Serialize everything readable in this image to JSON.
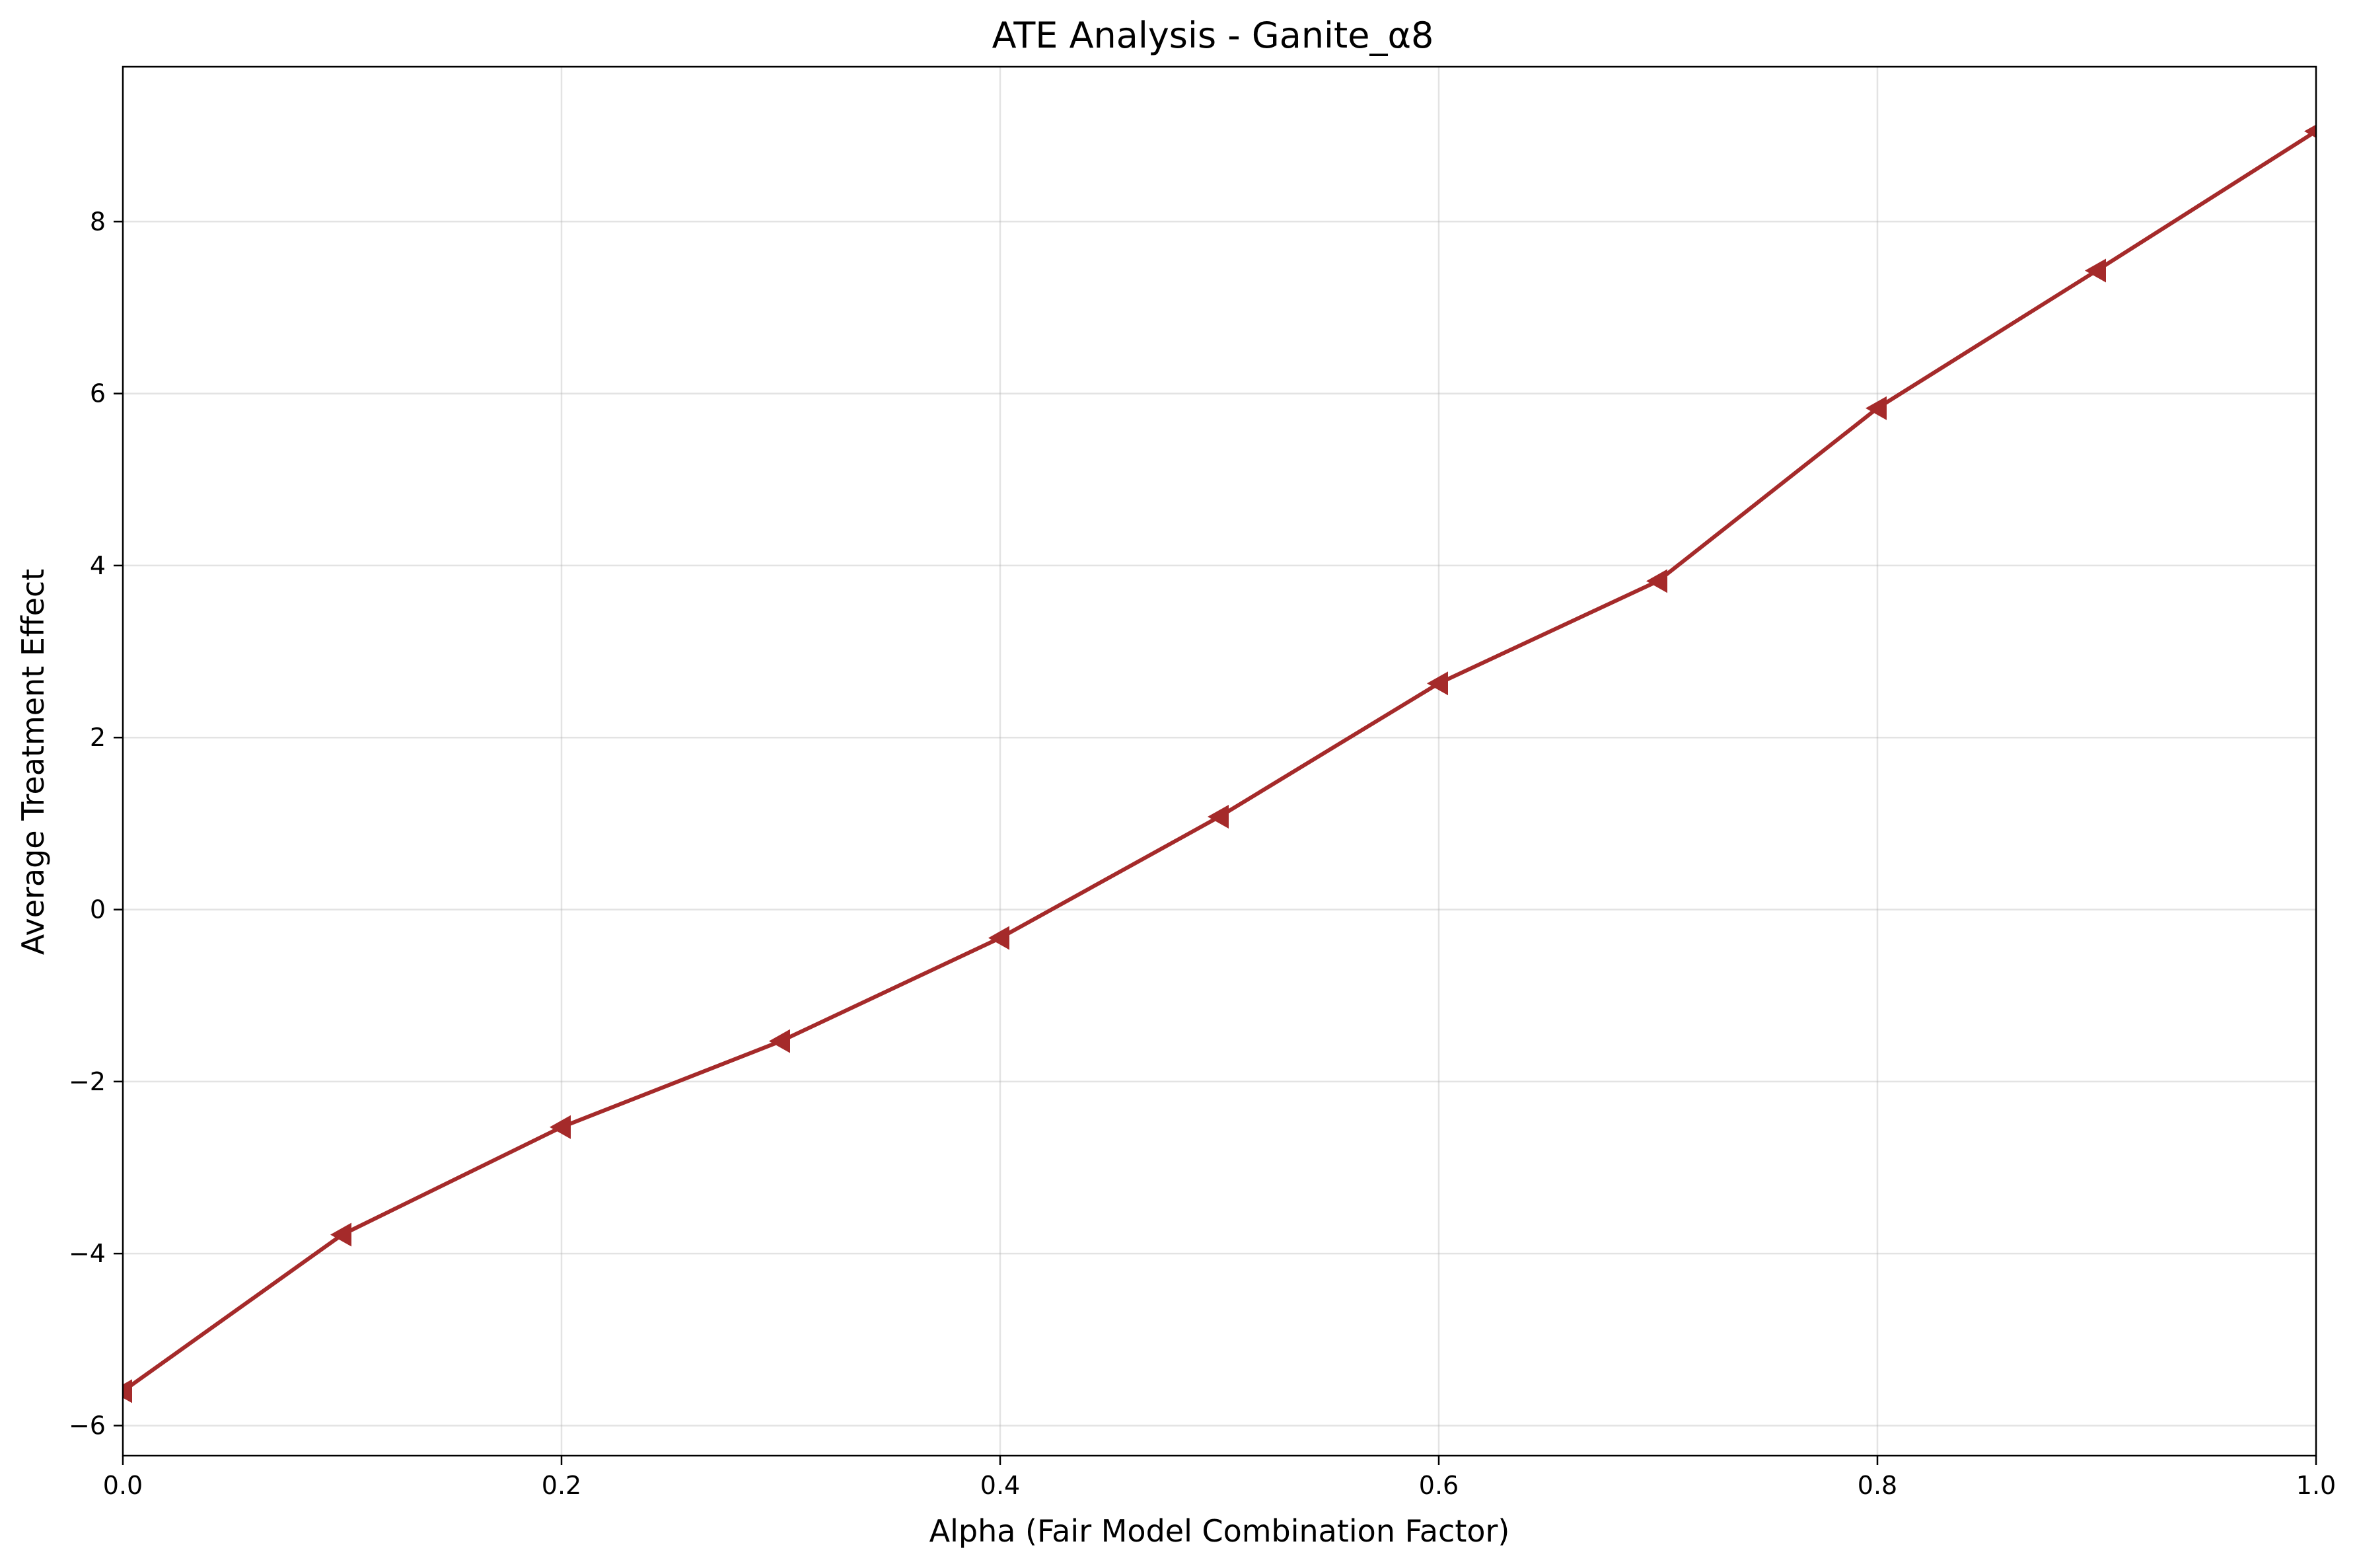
{
  "chart_data": {
    "type": "line",
    "title": "ATE Analysis - Ganite_α8",
    "xlabel": "Alpha (Fair Model Combination Factor)",
    "ylabel": "Average Treatment Effect",
    "xlim": [
      0.0,
      1.0
    ],
    "ylim": [
      -6.35,
      9.8
    ],
    "x_ticks": [
      0.0,
      0.2,
      0.4,
      0.6,
      0.8,
      1.0
    ],
    "x_tick_labels": [
      "0.0",
      "0.2",
      "0.4",
      "0.6",
      "0.8",
      "1.0"
    ],
    "y_ticks": [
      -6,
      -4,
      -2,
      0,
      2,
      4,
      6,
      8
    ],
    "y_tick_labels": [
      "−6",
      "−4",
      "−2",
      "0",
      "2",
      "4",
      "6",
      "8"
    ],
    "grid": true,
    "marker": "triangle-left",
    "color": "#a52a2a",
    "series": [
      {
        "x": [
          0.0,
          0.1,
          0.2,
          0.3,
          0.4,
          0.5,
          0.6,
          0.7,
          0.8,
          0.9,
          1.0
        ],
        "values": [
          -5.6,
          -3.78,
          -2.53,
          -1.53,
          -0.33,
          1.08,
          2.63,
          3.82,
          5.83,
          7.43,
          9.05
        ]
      }
    ]
  }
}
